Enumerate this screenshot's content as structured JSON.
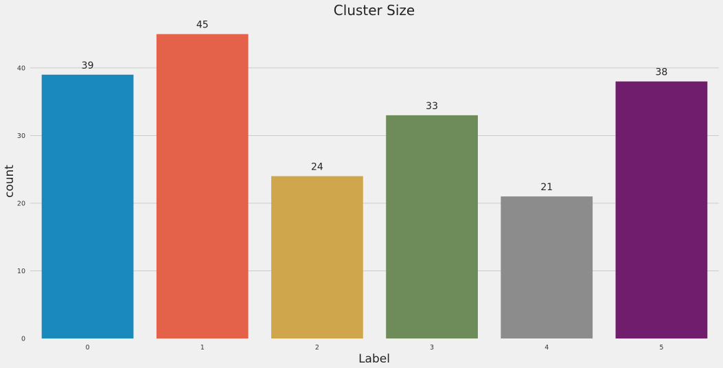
{
  "chart_data": {
    "type": "bar",
    "title": "Cluster Size",
    "xlabel": "Label",
    "ylabel": "count",
    "categories": [
      "0",
      "1",
      "2",
      "3",
      "4",
      "5"
    ],
    "values": [
      39,
      45,
      24,
      33,
      21,
      38
    ],
    "data_labels": [
      "39",
      "45",
      "24",
      "33",
      "21",
      "38"
    ],
    "ylim": [
      0,
      47.3
    ],
    "yticks": [
      0,
      10,
      20,
      30,
      40
    ],
    "ytick_labels": [
      "0",
      "10",
      "20",
      "30",
      "40"
    ],
    "grid": "y",
    "legend": "none",
    "colors": [
      "#1a89bd",
      "#e4624a",
      "#d0a64d",
      "#6e8b5a",
      "#8c8c8c",
      "#711d6d"
    ],
    "background": "#f0f0f0"
  }
}
